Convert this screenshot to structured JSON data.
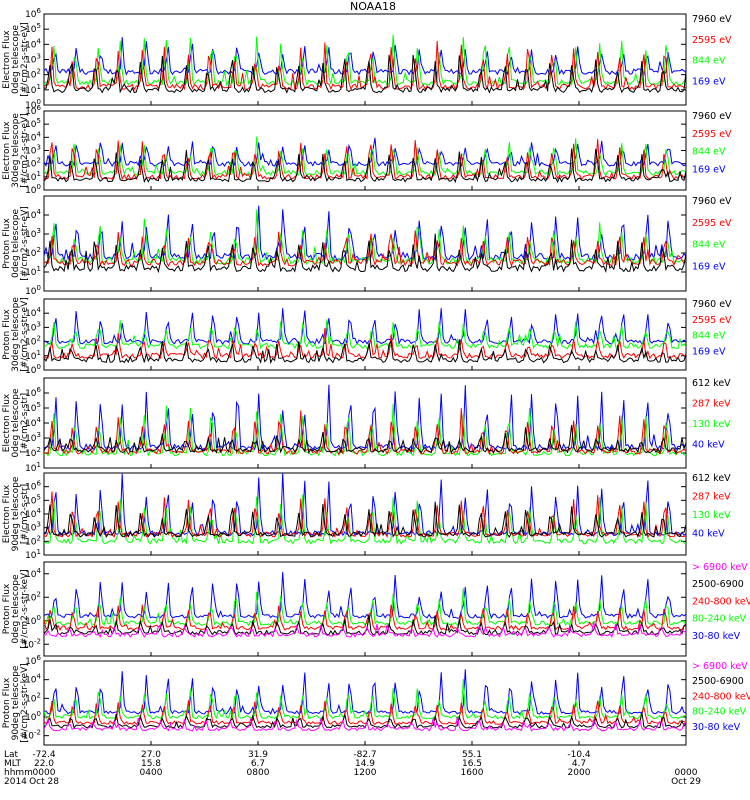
{
  "title": "NOAA18",
  "colors": {
    "black": "#000000",
    "red": "#ff0000",
    "green": "#00ff00",
    "blue": "#0000ff",
    "magenta": "#ff00ff"
  },
  "chart_data": [
    {
      "type": "line",
      "panel": "TED Electron Flux 0deg telescope",
      "ylabel": [
        "TED",
        "Electron Flux",
        "0deg telescope",
        "[#/cm2-s-str-eV]"
      ],
      "y_scale": "log",
      "ylim_exp": [
        0,
        6
      ],
      "y_tick_labels": [
        "10^0",
        "10^1",
        "10^2",
        "10^3",
        "10^4",
        "10^5",
        "10^6"
      ],
      "series": [
        {
          "name": "7960 eV",
          "color": "black",
          "baseline_exp": 1.0,
          "amp": 2.2
        },
        {
          "name": "2595 eV",
          "color": "red",
          "baseline_exp": 1.2,
          "amp": 2.5
        },
        {
          "name": "844 eV",
          "color": "green",
          "baseline_exp": 1.5,
          "amp": 2.8
        },
        {
          "name": "169 eV",
          "color": "blue",
          "baseline_exp": 2.2,
          "amp": 1.8
        }
      ]
    },
    {
      "type": "line",
      "panel": "TED Electron Flux 30deg telescope",
      "ylabel": [
        "TED",
        "Electron Flux",
        "30deg telescope",
        "[#/cm2-s-str-eV]"
      ],
      "y_scale": "log",
      "ylim_exp": [
        0,
        6
      ],
      "y_tick_labels": [
        "10^0",
        "10^1",
        "10^2",
        "10^3",
        "10^4",
        "10^5",
        "10^6"
      ],
      "series": [
        {
          "name": "7960 eV",
          "color": "black",
          "baseline_exp": 0.8,
          "amp": 2.0
        },
        {
          "name": "2595 eV",
          "color": "red",
          "baseline_exp": 1.0,
          "amp": 2.6
        },
        {
          "name": "844 eV",
          "color": "green",
          "baseline_exp": 1.3,
          "amp": 2.4
        },
        {
          "name": "169 eV",
          "color": "blue",
          "baseline_exp": 2.0,
          "amp": 1.6
        }
      ]
    },
    {
      "type": "line",
      "panel": "TED Proton Flux 0deg telescope",
      "ylabel": [
        "TED",
        "Proton Flux",
        "0deg telescope",
        "[#/cm2-s-str-eV]"
      ],
      "y_scale": "log",
      "ylim_exp": [
        0,
        5
      ],
      "y_tick_labels": [
        "10^0",
        "10^1",
        "10^2",
        "10^3",
        "10^4"
      ],
      "series": [
        {
          "name": "7960 eV",
          "color": "black",
          "baseline_exp": 1.2,
          "amp": 1.4
        },
        {
          "name": "2595 eV",
          "color": "red",
          "baseline_exp": 1.5,
          "amp": 1.5
        },
        {
          "name": "844 eV",
          "color": "green",
          "baseline_exp": 1.6,
          "amp": 1.8
        },
        {
          "name": "169 eV",
          "color": "blue",
          "baseline_exp": 1.8,
          "amp": 2.2
        }
      ]
    },
    {
      "type": "line",
      "panel": "TED Proton Flux 30deg telescope",
      "ylabel": [
        "TED",
        "Proton Flux",
        "30deg telescope",
        "[#/cm2-s-str-eV]"
      ],
      "y_scale": "log",
      "ylim_exp": [
        0,
        5
      ],
      "y_tick_labels": [
        "10^0",
        "10^1",
        "10^2",
        "10^3",
        "10^4"
      ],
      "series": [
        {
          "name": "7960 eV",
          "color": "black",
          "baseline_exp": 0.7,
          "amp": 1.2
        },
        {
          "name": "2595 eV",
          "color": "red",
          "baseline_exp": 1.0,
          "amp": 1.3
        },
        {
          "name": "844 eV",
          "color": "green",
          "baseline_exp": 1.7,
          "amp": 1.6
        },
        {
          "name": "169 eV",
          "color": "blue",
          "baseline_exp": 2.0,
          "amp": 2.1
        }
      ]
    },
    {
      "type": "line",
      "panel": "MEPED Electron Flux 0deg telescope",
      "ylabel": [
        "MEPED",
        "Electron Flux",
        "0deg telescope",
        "[#/cm2-s-str]"
      ],
      "y_scale": "log",
      "ylim_exp": [
        1,
        7
      ],
      "y_tick_labels": [
        "10^1",
        "10^2",
        "10^3",
        "10^4",
        "10^5",
        "10^6"
      ],
      "series": [
        {
          "name": "612 keV",
          "color": "black",
          "baseline_exp": 2.2,
          "amp": 1.0
        },
        {
          "name": "287 keV",
          "color": "red",
          "baseline_exp": 2.1,
          "amp": 2.2
        },
        {
          "name": "130 keV",
          "color": "green",
          "baseline_exp": 2.0,
          "amp": 3.0
        },
        {
          "name": "40 keV",
          "color": "blue",
          "baseline_exp": 2.4,
          "amp": 3.6
        }
      ]
    },
    {
      "type": "line",
      "panel": "MEPED Electron Flux 90deg telescope",
      "ylabel": [
        "MEPED",
        "Electron Flux",
        "90deg telescope",
        "[#/cm2-s-str]"
      ],
      "y_scale": "log",
      "ylim_exp": [
        1,
        7
      ],
      "y_tick_labels": [
        "10^1",
        "10^2",
        "10^3",
        "10^4",
        "10^5",
        "10^6"
      ],
      "series": [
        {
          "name": "612 keV",
          "color": "black",
          "baseline_exp": 2.5,
          "amp": 2.0
        },
        {
          "name": "287 keV",
          "color": "red",
          "baseline_exp": 2.5,
          "amp": 2.6
        },
        {
          "name": "130 keV",
          "color": "green",
          "baseline_exp": 2.0,
          "amp": 3.2
        },
        {
          "name": "40 keV",
          "color": "blue",
          "baseline_exp": 2.6,
          "amp": 3.8
        }
      ]
    },
    {
      "type": "line",
      "panel": "MEPED Proton Flux 0deg telescope",
      "ylabel": [
        "MEPED",
        "Proton Flux",
        "0deg telescope",
        "[#/cm2-s-str-keV]"
      ],
      "y_scale": "log",
      "ylim_exp": [
        -3,
        5
      ],
      "y_tick_labels": [
        "10^-2",
        "10^0",
        "10^2",
        "10^4"
      ],
      "series": [
        {
          "name": "> 6900 keV",
          "color": "magenta",
          "baseline_exp": -1.2,
          "amp": 0.8
        },
        {
          "name": "2500-6900",
          "color": "black",
          "baseline_exp": -1.0,
          "amp": 1.0
        },
        {
          "name": "240-800 keV",
          "color": "red",
          "baseline_exp": -0.6,
          "amp": 1.8
        },
        {
          "name": "80-240 keV",
          "color": "green",
          "baseline_exp": -0.2,
          "amp": 2.4
        },
        {
          "name": "30-80 keV",
          "color": "blue",
          "baseline_exp": 0.4,
          "amp": 3.2
        }
      ]
    },
    {
      "type": "line",
      "panel": "MEPED Proton Flux 90deg telescope",
      "ylabel": [
        "MEPED",
        "Proton Flux",
        "90deg telescope",
        "[#/cm2-s-str-keV]"
      ],
      "y_scale": "log",
      "ylim_exp": [
        -3,
        6
      ],
      "y_tick_labels": [
        "10^-2",
        "10^0",
        "10^2",
        "10^4",
        "10^6"
      ],
      "series": [
        {
          "name": "> 6900 keV",
          "color": "magenta",
          "baseline_exp": -1.3,
          "amp": 1.0
        },
        {
          "name": "2500-6900",
          "color": "black",
          "baseline_exp": -1.0,
          "amp": 1.2
        },
        {
          "name": "240-800 keV",
          "color": "red",
          "baseline_exp": -0.6,
          "amp": 2.2
        },
        {
          "name": "80-240 keV",
          "color": "green",
          "baseline_exp": 0.0,
          "amp": 3.0
        },
        {
          "name": "30-80 keV",
          "color": "blue",
          "baseline_exp": 0.5,
          "amp": 3.8
        }
      ]
    }
  ],
  "x_axis": {
    "row_labels": [
      "Lat",
      "MLT",
      "hhmm",
      "2014"
    ],
    "ticks": [
      {
        "lat": "-72.4",
        "mlt": "22.0",
        "hhmm": "0000",
        "date": "Oct 28"
      },
      {
        "lat": "27.0",
        "mlt": "15.8",
        "hhmm": "0400",
        "date": ""
      },
      {
        "lat": "31.9",
        "mlt": "6.7",
        "hhmm": "0800",
        "date": ""
      },
      {
        "lat": "-82.7",
        "mlt": "14.9",
        "hhmm": "1200",
        "date": ""
      },
      {
        "lat": "55.1",
        "mlt": "16.5",
        "hhmm": "1600",
        "date": ""
      },
      {
        "lat": "-10.4",
        "mlt": "4.7",
        "hhmm": "2000",
        "date": ""
      },
      {
        "lat": "",
        "mlt": "",
        "hhmm": "0000",
        "date": "Oct 29"
      }
    ]
  }
}
